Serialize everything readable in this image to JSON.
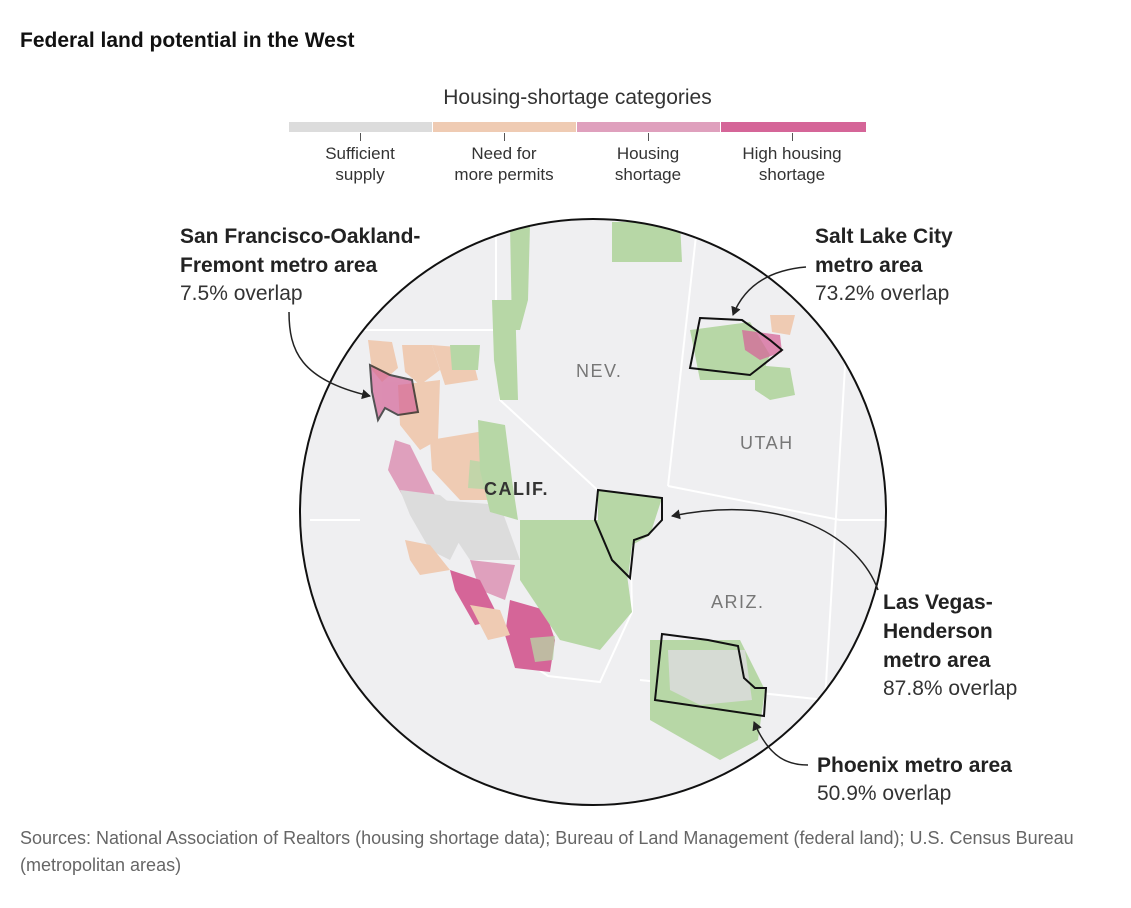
{
  "title": "Federal land potential in the West",
  "legend": {
    "title": "Housing-shortage categories",
    "categories": [
      {
        "line1": "Sufficient",
        "line2": "supply",
        "color": "#dcdcdc"
      },
      {
        "line1": "Need for",
        "line2": "more permits",
        "color": "#efcbb3"
      },
      {
        "line1": "Housing",
        "line2": "shortage",
        "color": "#dfa0bd"
      },
      {
        "line1": "High housing",
        "line2": "shortage",
        "color": "#d56598"
      }
    ]
  },
  "colors": {
    "federal_land": "#b7d7a6",
    "background_land": "#efeff1",
    "state_border": "#ffffff",
    "circle": "#111111"
  },
  "states": {
    "nev": "NEV.",
    "utah": "UTAH",
    "calif": "CALIF.",
    "ariz": "ARIZ."
  },
  "callouts": {
    "sf": {
      "line1": "San Francisco-Oakland-",
      "line2": "Fremont metro area",
      "overlap": "7.5% overlap"
    },
    "slc": {
      "line1": "Salt Lake City",
      "line2": "metro area",
      "overlap": "73.2% overlap"
    },
    "lv": {
      "line1": "Las Vegas-",
      "line2": "Henderson",
      "line3": "metro area",
      "overlap": "87.8% overlap"
    },
    "phx": {
      "line1": "Phoenix metro area",
      "overlap": "50.9% overlap"
    }
  },
  "source": "Sources: National Association of Realtors (housing shortage data); Bureau of Land Management (federal land); U.S. Census Bureau (metropolitan areas)"
}
